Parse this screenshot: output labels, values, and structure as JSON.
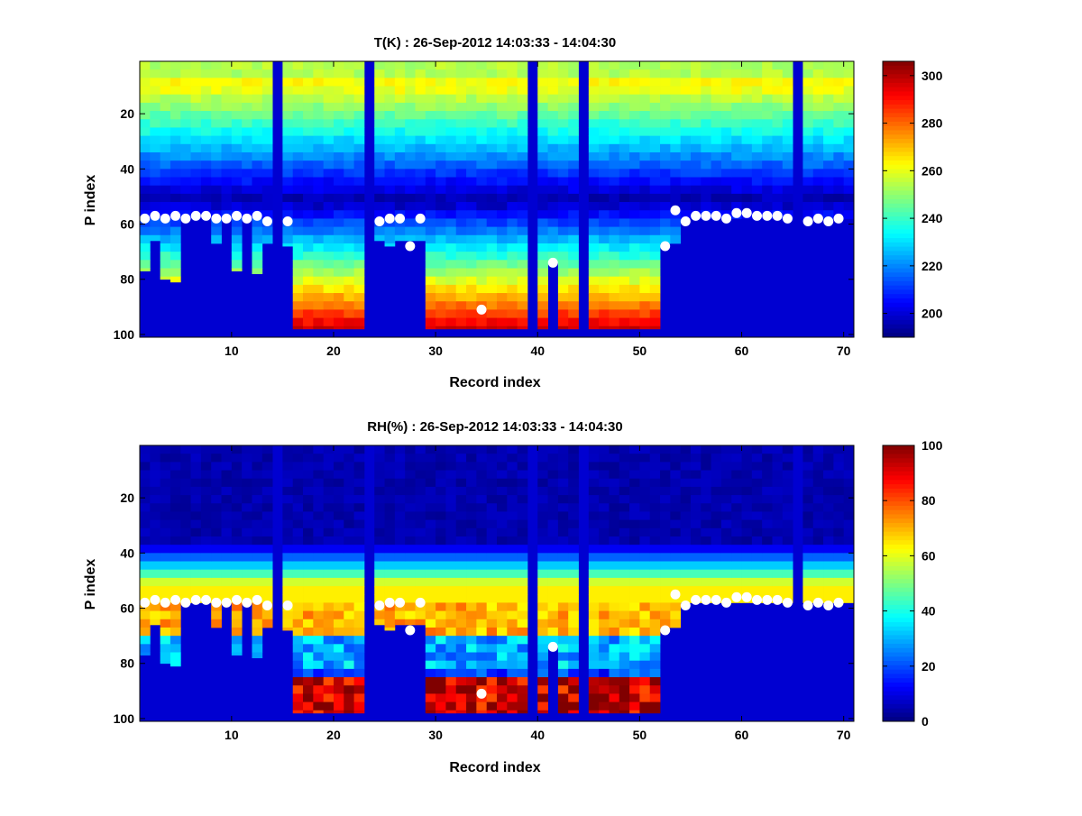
{
  "chart_data": [
    {
      "type": "heatmap",
      "title": "T(K) : 26-Sep-2012 14:03:33 - 14:04:30",
      "xlabel": "Record index",
      "ylabel": "P index",
      "xlim": [
        1,
        71
      ],
      "ylim": [
        1,
        101
      ],
      "y_reversed": true,
      "xticks": [
        10,
        20,
        30,
        40,
        50,
        60,
        70
      ],
      "yticks": [
        20,
        40,
        60,
        80,
        100
      ],
      "colormap": "jet",
      "colorbar": {
        "min": 190,
        "max": 306,
        "ticks": [
          200,
          220,
          240,
          260,
          280,
          300
        ]
      },
      "cutoff": [
        77,
        66,
        80,
        81,
        58,
        58,
        58,
        67,
        58,
        77,
        58,
        78,
        67,
        0,
        68,
        98,
        98,
        98,
        98,
        98,
        98,
        98,
        0,
        66,
        68,
        66,
        66,
        66,
        98,
        98,
        98,
        98,
        98,
        98,
        98,
        98,
        98,
        98,
        0,
        98,
        74,
        98,
        98,
        0,
        98,
        98,
        98,
        98,
        98,
        98,
        98,
        67,
        67,
        58,
        58,
        58,
        58,
        58,
        58,
        58,
        58,
        58,
        58,
        58,
        0,
        58,
        58,
        58,
        58,
        58
      ],
      "markers": [
        {
          "x": 1,
          "y": 58
        },
        {
          "x": 2,
          "y": 57
        },
        {
          "x": 3,
          "y": 58
        },
        {
          "x": 4,
          "y": 57
        },
        {
          "x": 5,
          "y": 58
        },
        {
          "x": 6,
          "y": 57
        },
        {
          "x": 7,
          "y": 57
        },
        {
          "x": 8,
          "y": 58
        },
        {
          "x": 9,
          "y": 58
        },
        {
          "x": 10,
          "y": 57
        },
        {
          "x": 11,
          "y": 58
        },
        {
          "x": 12,
          "y": 57
        },
        {
          "x": 13,
          "y": 59
        },
        {
          "x": 15,
          "y": 59
        },
        {
          "x": 24,
          "y": 59
        },
        {
          "x": 25,
          "y": 58
        },
        {
          "x": 26,
          "y": 58
        },
        {
          "x": 27,
          "y": 68
        },
        {
          "x": 28,
          "y": 58
        },
        {
          "x": 34,
          "y": 91
        },
        {
          "x": 41,
          "y": 74
        },
        {
          "x": 52,
          "y": 68
        },
        {
          "x": 53,
          "y": 55
        },
        {
          "x": 54,
          "y": 59
        },
        {
          "x": 55,
          "y": 57
        },
        {
          "x": 56,
          "y": 57
        },
        {
          "x": 57,
          "y": 57
        },
        {
          "x": 58,
          "y": 58
        },
        {
          "x": 59,
          "y": 56
        },
        {
          "x": 60,
          "y": 56
        },
        {
          "x": 61,
          "y": 57
        },
        {
          "x": 62,
          "y": 57
        },
        {
          "x": 63,
          "y": 57
        },
        {
          "x": 64,
          "y": 58
        },
        {
          "x": 66,
          "y": 59
        },
        {
          "x": 67,
          "y": 58
        },
        {
          "x": 68,
          "y": 59
        },
        {
          "x": 69,
          "y": 58
        }
      ]
    },
    {
      "type": "heatmap",
      "title": "RH(%) : 26-Sep-2012 14:03:33 - 14:04:30",
      "xlabel": "Record index",
      "ylabel": "P index",
      "xlim": [
        1,
        71
      ],
      "ylim": [
        1,
        101
      ],
      "y_reversed": true,
      "xticks": [
        10,
        20,
        30,
        40,
        50,
        60,
        70
      ],
      "yticks": [
        20,
        40,
        60,
        80,
        100
      ],
      "colormap": "jet",
      "colorbar": {
        "min": 0,
        "max": 100,
        "ticks": [
          0,
          20,
          40,
          60,
          80,
          100
        ]
      },
      "cutoff": [
        77,
        66,
        80,
        81,
        58,
        58,
        58,
        67,
        58,
        77,
        58,
        78,
        67,
        0,
        68,
        98,
        98,
        98,
        98,
        98,
        98,
        98,
        0,
        66,
        68,
        66,
        66,
        66,
        98,
        98,
        98,
        98,
        98,
        98,
        98,
        98,
        98,
        98,
        0,
        98,
        74,
        98,
        98,
        0,
        98,
        98,
        98,
        98,
        98,
        98,
        98,
        67,
        67,
        58,
        58,
        58,
        58,
        58,
        58,
        58,
        58,
        58,
        58,
        58,
        0,
        58,
        58,
        58,
        58,
        58
      ],
      "markers": [
        {
          "x": 1,
          "y": 58
        },
        {
          "x": 2,
          "y": 57
        },
        {
          "x": 3,
          "y": 58
        },
        {
          "x": 4,
          "y": 57
        },
        {
          "x": 5,
          "y": 58
        },
        {
          "x": 6,
          "y": 57
        },
        {
          "x": 7,
          "y": 57
        },
        {
          "x": 8,
          "y": 58
        },
        {
          "x": 9,
          "y": 58
        },
        {
          "x": 10,
          "y": 57
        },
        {
          "x": 11,
          "y": 58
        },
        {
          "x": 12,
          "y": 57
        },
        {
          "x": 13,
          "y": 59
        },
        {
          "x": 15,
          "y": 59
        },
        {
          "x": 24,
          "y": 59
        },
        {
          "x": 25,
          "y": 58
        },
        {
          "x": 26,
          "y": 58
        },
        {
          "x": 27,
          "y": 68
        },
        {
          "x": 28,
          "y": 58
        },
        {
          "x": 34,
          "y": 91
        },
        {
          "x": 41,
          "y": 74
        },
        {
          "x": 52,
          "y": 68
        },
        {
          "x": 53,
          "y": 55
        },
        {
          "x": 54,
          "y": 59
        },
        {
          "x": 55,
          "y": 57
        },
        {
          "x": 56,
          "y": 57
        },
        {
          "x": 57,
          "y": 57
        },
        {
          "x": 58,
          "y": 58
        },
        {
          "x": 59,
          "y": 56
        },
        {
          "x": 60,
          "y": 56
        },
        {
          "x": 61,
          "y": 57
        },
        {
          "x": 62,
          "y": 57
        },
        {
          "x": 63,
          "y": 57
        },
        {
          "x": 64,
          "y": 58
        },
        {
          "x": 66,
          "y": 59
        },
        {
          "x": 67,
          "y": 58
        },
        {
          "x": 68,
          "y": 59
        },
        {
          "x": 69,
          "y": 58
        }
      ]
    }
  ]
}
